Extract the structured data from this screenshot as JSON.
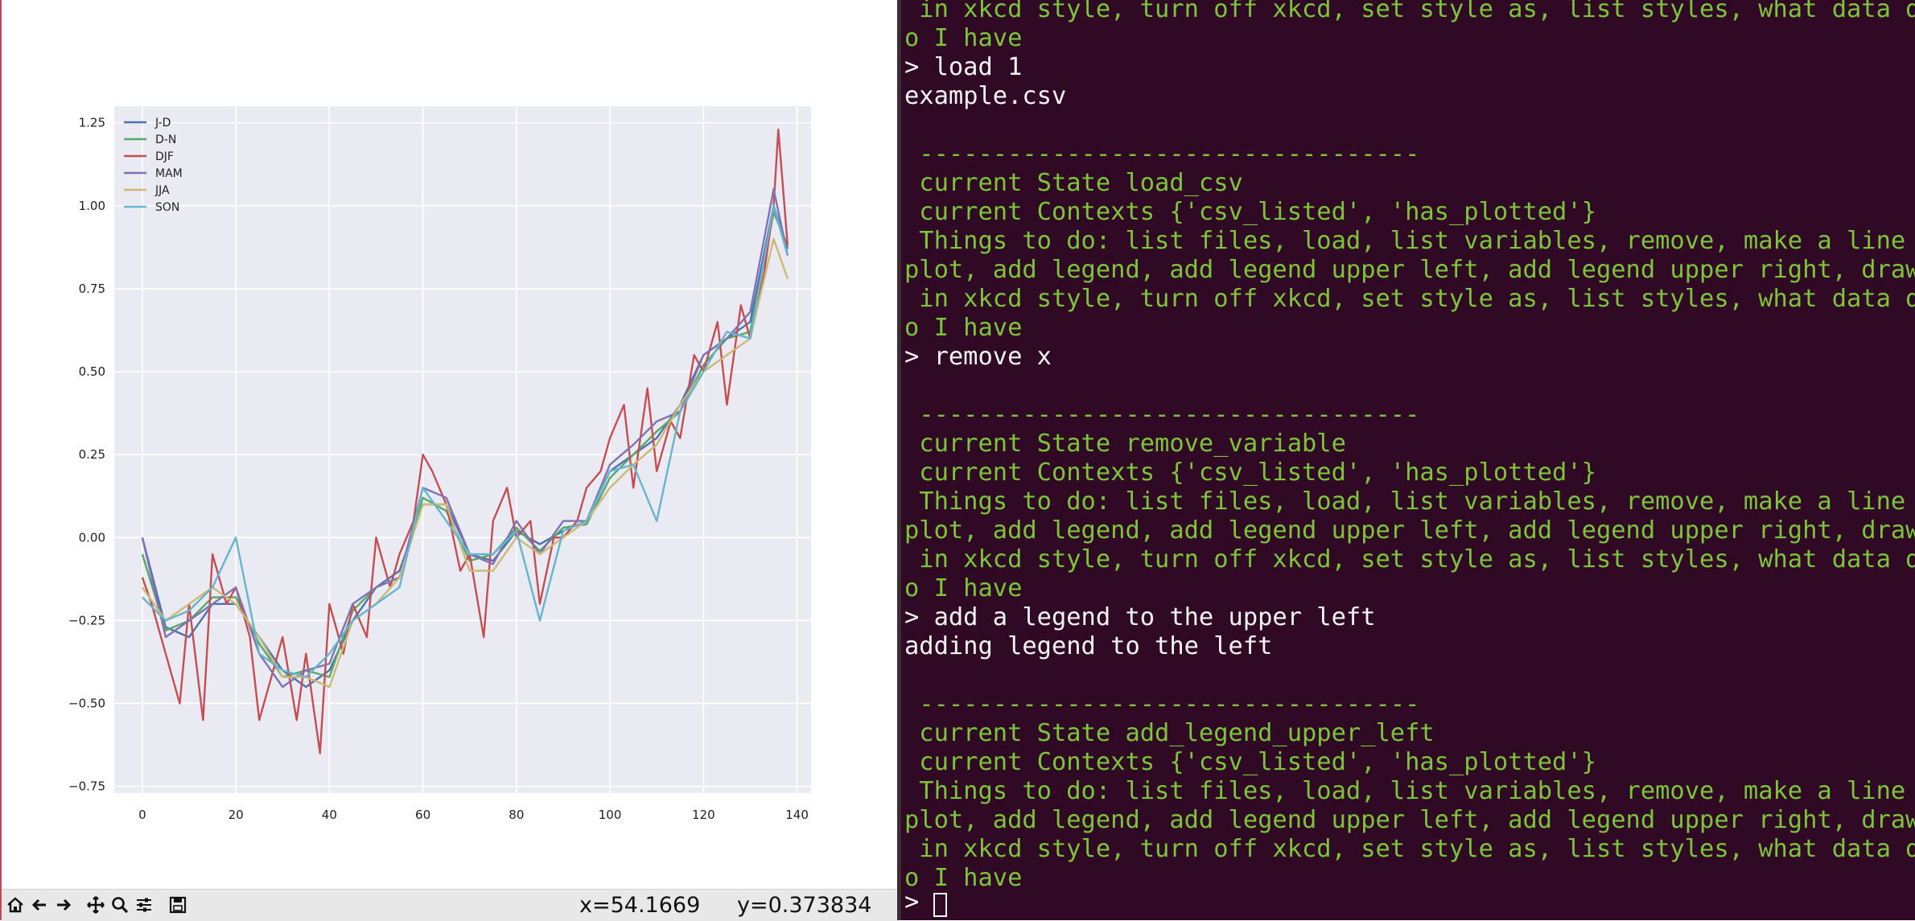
{
  "chart_data": {
    "type": "line",
    "xlim": [
      -6,
      143
    ],
    "ylim": [
      -0.77,
      1.3
    ],
    "xticks": [
      "0",
      "20",
      "40",
      "60",
      "80",
      "100",
      "120",
      "140"
    ],
    "xtick_values": [
      0,
      20,
      40,
      60,
      80,
      100,
      120,
      140
    ],
    "yticks": [
      "−0.75",
      "−0.50",
      "−0.25",
      "0.00",
      "0.25",
      "0.50",
      "0.75",
      "1.00",
      "1.25"
    ],
    "ytick_values": [
      -0.75,
      -0.5,
      -0.25,
      0.0,
      0.25,
      0.5,
      0.75,
      1.0,
      1.25
    ],
    "grid": true,
    "legend_position": "upper-left",
    "series": [
      {
        "name": "J-D",
        "color": "#4c72b0",
        "x": [
          0,
          5,
          10,
          15,
          20,
          25,
          30,
          35,
          40,
          45,
          50,
          55,
          60,
          65,
          70,
          75,
          80,
          85,
          90,
          95,
          100,
          105,
          110,
          115,
          120,
          125,
          130,
          135,
          138
        ],
        "y": [
          0.0,
          -0.27,
          -0.3,
          -0.2,
          -0.2,
          -0.3,
          -0.4,
          -0.45,
          -0.4,
          -0.25,
          -0.15,
          -0.1,
          0.1,
          0.1,
          -0.05,
          -0.07,
          0.02,
          -0.02,
          0.02,
          0.05,
          0.2,
          0.25,
          0.3,
          0.4,
          0.55,
          0.6,
          0.65,
          1.0,
          0.87
        ]
      },
      {
        "name": "D-N",
        "color": "#55a868",
        "x": [
          0,
          5,
          10,
          15,
          20,
          25,
          30,
          35,
          40,
          45,
          50,
          55,
          60,
          65,
          70,
          75,
          80,
          85,
          90,
          95,
          100,
          105,
          110,
          115,
          120,
          125,
          130,
          135,
          138
        ],
        "y": [
          -0.05,
          -0.28,
          -0.25,
          -0.18,
          -0.18,
          -0.32,
          -0.42,
          -0.4,
          -0.42,
          -0.22,
          -0.15,
          -0.12,
          0.12,
          0.08,
          -0.07,
          -0.05,
          0.03,
          -0.04,
          0.03,
          0.04,
          0.18,
          0.25,
          0.32,
          0.38,
          0.52,
          0.6,
          0.62,
          0.98,
          0.88
        ]
      },
      {
        "name": "DJF",
        "color": "#c44e52",
        "x": [
          0,
          2,
          5,
          8,
          10,
          13,
          15,
          18,
          20,
          23,
          25,
          28,
          30,
          33,
          35,
          38,
          40,
          43,
          45,
          48,
          50,
          53,
          55,
          58,
          60,
          62,
          65,
          68,
          70,
          73,
          75,
          78,
          80,
          83,
          85,
          88,
          90,
          93,
          95,
          98,
          100,
          103,
          105,
          108,
          110,
          113,
          115,
          118,
          120,
          123,
          125,
          128,
          130,
          133,
          135,
          136,
          138
        ],
        "y": [
          -0.12,
          -0.2,
          -0.35,
          -0.5,
          -0.2,
          -0.55,
          -0.05,
          -0.2,
          -0.15,
          -0.3,
          -0.55,
          -0.4,
          -0.3,
          -0.55,
          -0.35,
          -0.65,
          -0.2,
          -0.35,
          -0.2,
          -0.3,
          0.0,
          -0.15,
          -0.05,
          0.05,
          0.25,
          0.2,
          0.1,
          -0.1,
          -0.05,
          -0.3,
          0.05,
          0.15,
          0.0,
          0.05,
          -0.2,
          0.0,
          0.0,
          0.05,
          0.15,
          0.2,
          0.3,
          0.4,
          0.15,
          0.45,
          0.2,
          0.35,
          0.3,
          0.55,
          0.5,
          0.65,
          0.4,
          0.7,
          0.6,
          0.8,
          1.0,
          1.23,
          0.88
        ]
      },
      {
        "name": "MAM",
        "color": "#8172b2",
        "x": [
          0,
          5,
          10,
          15,
          20,
          25,
          30,
          35,
          40,
          45,
          50,
          55,
          60,
          65,
          70,
          75,
          80,
          85,
          90,
          95,
          100,
          105,
          110,
          115,
          120,
          125,
          130,
          135,
          138
        ],
        "y": [
          0.0,
          -0.3,
          -0.25,
          -0.2,
          -0.15,
          -0.35,
          -0.45,
          -0.4,
          -0.38,
          -0.2,
          -0.15,
          -0.12,
          0.15,
          0.12,
          -0.05,
          -0.08,
          0.05,
          -0.05,
          0.05,
          0.05,
          0.22,
          0.28,
          0.35,
          0.38,
          0.55,
          0.6,
          0.68,
          1.05,
          0.85
        ]
      },
      {
        "name": "JJA",
        "color": "#ccb974",
        "x": [
          0,
          5,
          10,
          15,
          20,
          25,
          30,
          35,
          40,
          45,
          50,
          55,
          60,
          65,
          70,
          75,
          80,
          85,
          90,
          95,
          100,
          105,
          110,
          115,
          120,
          125,
          130,
          135,
          138
        ],
        "y": [
          -0.15,
          -0.25,
          -0.2,
          -0.15,
          -0.2,
          -0.3,
          -0.42,
          -0.42,
          -0.45,
          -0.25,
          -0.2,
          -0.12,
          0.1,
          0.1,
          -0.1,
          -0.1,
          0.0,
          -0.05,
          0.0,
          0.05,
          0.15,
          0.22,
          0.28,
          0.4,
          0.5,
          0.55,
          0.6,
          0.9,
          0.78
        ]
      },
      {
        "name": "SON",
        "color": "#64b5cd",
        "x": [
          0,
          5,
          10,
          15,
          20,
          25,
          30,
          35,
          40,
          45,
          50,
          55,
          60,
          65,
          70,
          75,
          80,
          85,
          90,
          95,
          100,
          105,
          110,
          115,
          120,
          125,
          130,
          135,
          138
        ],
        "y": [
          -0.18,
          -0.25,
          -0.22,
          -0.15,
          0.0,
          -0.35,
          -0.4,
          -0.42,
          -0.35,
          -0.25,
          -0.2,
          -0.15,
          0.15,
          0.05,
          -0.05,
          -0.05,
          0.02,
          -0.25,
          0.02,
          0.05,
          0.2,
          0.22,
          0.05,
          0.38,
          0.5,
          0.62,
          0.6,
          1.0,
          0.85
        ]
      }
    ]
  },
  "toolbar": {
    "buttons": [
      {
        "name": "home-icon"
      },
      {
        "name": "back-arrow-icon"
      },
      {
        "name": "forward-arrow-icon"
      },
      {
        "name": "pan-icon"
      },
      {
        "name": "zoom-icon"
      },
      {
        "name": "configure-subplots-icon"
      },
      {
        "name": "save-icon"
      }
    ],
    "coord_x": "x=54.1669",
    "coord_y": "y=0.373834"
  },
  "terminal": {
    "lines": [
      {
        "text": " in xkcd style, turn off xkcd, set style as, list styles, what data d",
        "style": "g"
      },
      {
        "text": "o I have",
        "style": "g"
      },
      {
        "text": "> load 1",
        "style": "w"
      },
      {
        "text": "example.csv",
        "style": "w"
      },
      {
        "text": "",
        "style": "g"
      },
      {
        "text": " ----------------------------------",
        "style": "g"
      },
      {
        "text": " current State load_csv",
        "style": "g"
      },
      {
        "text": " current Contexts {'csv_listed', 'has_plotted'}",
        "style": "g"
      },
      {
        "text": " Things to do: list files, load, list variables, remove, make a line",
        "style": "g"
      },
      {
        "text": "plot, add legend, add legend upper left, add legend upper right, draw",
        "style": "g"
      },
      {
        "text": " in xkcd style, turn off xkcd, set style as, list styles, what data d",
        "style": "g"
      },
      {
        "text": "o I have",
        "style": "g"
      },
      {
        "text": "> remove x",
        "style": "w"
      },
      {
        "text": "",
        "style": "g"
      },
      {
        "text": " ----------------------------------",
        "style": "g"
      },
      {
        "text": " current State remove_variable",
        "style": "g"
      },
      {
        "text": " current Contexts {'csv_listed', 'has_plotted'}",
        "style": "g"
      },
      {
        "text": " Things to do: list files, load, list variables, remove, make a line",
        "style": "g"
      },
      {
        "text": "plot, add legend, add legend upper left, add legend upper right, draw",
        "style": "g"
      },
      {
        "text": " in xkcd style, turn off xkcd, set style as, list styles, what data d",
        "style": "g"
      },
      {
        "text": "o I have",
        "style": "g"
      },
      {
        "text": "> add a legend to the upper left",
        "style": "w"
      },
      {
        "text": "adding legend to the left",
        "style": "w"
      },
      {
        "text": "",
        "style": "g"
      },
      {
        "text": " ----------------------------------",
        "style": "g"
      },
      {
        "text": " current State add_legend_upper_left",
        "style": "g"
      },
      {
        "text": " current Contexts {'csv_listed', 'has_plotted'}",
        "style": "g"
      },
      {
        "text": " Things to do: list files, load, list variables, remove, make a line",
        "style": "g"
      },
      {
        "text": "plot, add legend, add legend upper left, add legend upper right, draw",
        "style": "g"
      },
      {
        "text": " in xkcd style, turn off xkcd, set style as, list styles, what data d",
        "style": "g"
      },
      {
        "text": "o I have",
        "style": "g"
      }
    ],
    "prompt": ">"
  }
}
